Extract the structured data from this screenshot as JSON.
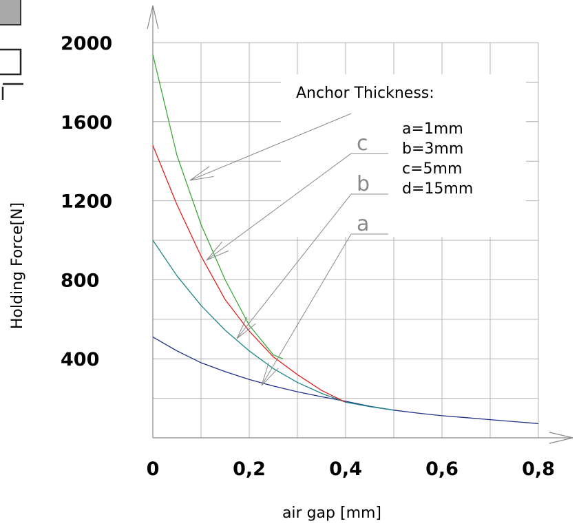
{
  "chart_data": {
    "type": "line",
    "xlabel": "air gap [mm]",
    "ylabel": "Holding Force[N]",
    "xlim": [
      0,
      0.8
    ],
    "ylim": [
      0,
      2000
    ],
    "x_ticks": [
      "0",
      "0,2",
      "0,4",
      "0,6",
      "0,8"
    ],
    "x_tick_values": [
      0,
      0.2,
      0.4,
      0.6,
      0.8
    ],
    "y_ticks": [
      "400",
      "800",
      "1200",
      "1600",
      "2000"
    ],
    "y_tick_values": [
      400,
      800,
      1200,
      1600,
      2000
    ],
    "grid": true,
    "legend": {
      "title": "Anchor Thickness:",
      "entries": [
        "a=1mm",
        "b=3mm",
        "c=5mm",
        "d=15mm"
      ],
      "placement": "top-right"
    },
    "series": [
      {
        "name": "a",
        "color": "#1f2f8a",
        "x": [
          0,
          0.05,
          0.1,
          0.15,
          0.2,
          0.25,
          0.3,
          0.35,
          0.4,
          0.45,
          0.5,
          0.55,
          0.6,
          0.65,
          0.7,
          0.75,
          0.8
        ],
        "y": [
          510,
          440,
          380,
          335,
          295,
          262,
          233,
          208,
          185,
          160,
          140,
          125,
          112,
          102,
          92,
          82,
          72
        ]
      },
      {
        "name": "b",
        "color": "#1e8585",
        "x": [
          0,
          0.05,
          0.1,
          0.15,
          0.2,
          0.25,
          0.3,
          0.35,
          0.4,
          0.45,
          0.5
        ],
        "y": [
          1000,
          820,
          670,
          545,
          440,
          350,
          280,
          225,
          180,
          158,
          140
        ]
      },
      {
        "name": "c",
        "color": "#e02020",
        "x": [
          0,
          0.05,
          0.1,
          0.15,
          0.2,
          0.25,
          0.3,
          0.35,
          0.4
        ],
        "y": [
          1480,
          1180,
          920,
          700,
          540,
          410,
          320,
          240,
          180
        ]
      },
      {
        "name": "d",
        "color": "#3aa83a",
        "x": [
          0,
          0.05,
          0.1,
          0.15,
          0.2,
          0.25,
          0.27
        ],
        "y": [
          1940,
          1430,
          1080,
          800,
          570,
          420,
          400
        ]
      }
    ],
    "annotations": [
      {
        "label": "c"
      },
      {
        "label": "b"
      },
      {
        "label": "a"
      }
    ]
  },
  "colors": {
    "grid": "#b4b4b4",
    "axis": "#888888",
    "pointer": "#888888",
    "tag": "#888888"
  }
}
